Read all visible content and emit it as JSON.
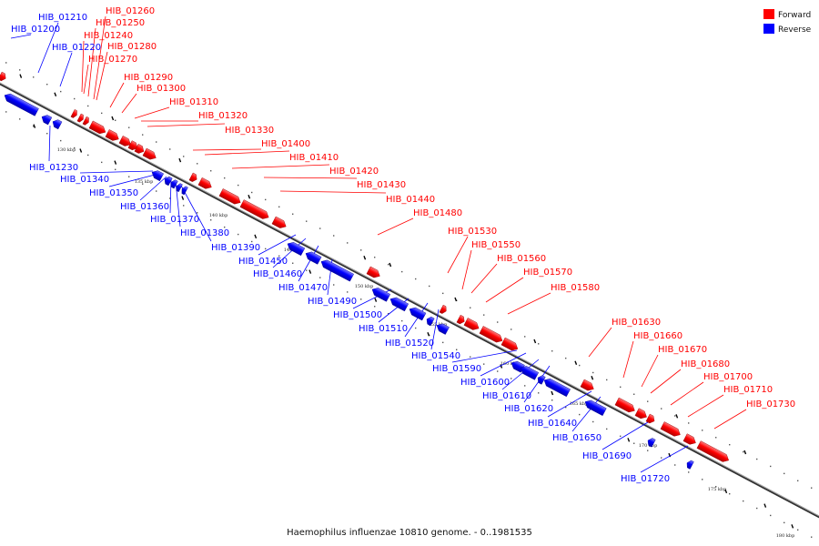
{
  "caption": "Haemophilus influenzae 10810 genome. - 0..1981535",
  "legend": [
    {
      "label": "Forward",
      "color": "#ff0000"
    },
    {
      "label": "Reverse",
      "color": "#0000ff"
    }
  ],
  "colors": {
    "forward": "#ff0000",
    "reverse": "#0000ff",
    "axis": "#808080"
  },
  "ticks": [
    "130 kbp",
    "135 kbp",
    "140 kbp",
    "145 kbp",
    "150 kbp",
    "155 kbp",
    "160 kbp",
    "165 kbp",
    "170 kbp",
    "175 kbp",
    "180 kbp"
  ],
  "genes": [
    {
      "name": "HIB_01200",
      "strand": "reverse"
    },
    {
      "name": "HIB_01210",
      "strand": "reverse"
    },
    {
      "name": "HIB_01220",
      "strand": "reverse"
    },
    {
      "name": "HIB_01230",
      "strand": "reverse"
    },
    {
      "name": "HIB_01240",
      "strand": "forward"
    },
    {
      "name": "HIB_01250",
      "strand": "forward"
    },
    {
      "name": "HIB_01260",
      "strand": "forward"
    },
    {
      "name": "HIB_01270",
      "strand": "forward"
    },
    {
      "name": "HIB_01280",
      "strand": "forward"
    },
    {
      "name": "HIB_01290",
      "strand": "forward"
    },
    {
      "name": "HIB_01300",
      "strand": "forward"
    },
    {
      "name": "HIB_01310",
      "strand": "forward"
    },
    {
      "name": "HIB_01320",
      "strand": "forward"
    },
    {
      "name": "HIB_01330",
      "strand": "forward"
    },
    {
      "name": "HIB_01340",
      "strand": "reverse"
    },
    {
      "name": "HIB_01350",
      "strand": "reverse"
    },
    {
      "name": "HIB_01360",
      "strand": "reverse"
    },
    {
      "name": "HIB_01370",
      "strand": "reverse"
    },
    {
      "name": "HIB_01380",
      "strand": "reverse"
    },
    {
      "name": "HIB_01390",
      "strand": "reverse"
    },
    {
      "name": "HIB_01400",
      "strand": "forward"
    },
    {
      "name": "HIB_01410",
      "strand": "forward"
    },
    {
      "name": "HIB_01420",
      "strand": "forward"
    },
    {
      "name": "HIB_01430",
      "strand": "forward"
    },
    {
      "name": "HIB_01440",
      "strand": "forward"
    },
    {
      "name": "HIB_01450",
      "strand": "reverse"
    },
    {
      "name": "HIB_01460",
      "strand": "reverse"
    },
    {
      "name": "HIB_01470",
      "strand": "reverse"
    },
    {
      "name": "HIB_01480",
      "strand": "forward"
    },
    {
      "name": "HIB_01490",
      "strand": "reverse"
    },
    {
      "name": "HIB_01500",
      "strand": "reverse"
    },
    {
      "name": "HIB_01510",
      "strand": "reverse"
    },
    {
      "name": "HIB_01520",
      "strand": "reverse"
    },
    {
      "name": "HIB_01530",
      "strand": "forward"
    },
    {
      "name": "HIB_01540",
      "strand": "reverse"
    },
    {
      "name": "HIB_01550",
      "strand": "forward"
    },
    {
      "name": "HIB_01560",
      "strand": "forward"
    },
    {
      "name": "HIB_01570",
      "strand": "forward"
    },
    {
      "name": "HIB_01580",
      "strand": "forward"
    },
    {
      "name": "HIB_01590",
      "strand": "reverse"
    },
    {
      "name": "HIB_01600",
      "strand": "reverse"
    },
    {
      "name": "HIB_01610",
      "strand": "reverse"
    },
    {
      "name": "HIB_01620",
      "strand": "reverse"
    },
    {
      "name": "HIB_01630",
      "strand": "forward"
    },
    {
      "name": "HIB_01640",
      "strand": "reverse"
    },
    {
      "name": "HIB_01650",
      "strand": "reverse"
    },
    {
      "name": "HIB_01660",
      "strand": "forward"
    },
    {
      "name": "HIB_01670",
      "strand": "forward"
    },
    {
      "name": "HIB_01680",
      "strand": "forward"
    },
    {
      "name": "HIB_01690",
      "strand": "reverse"
    },
    {
      "name": "HIB_01700",
      "strand": "forward"
    },
    {
      "name": "HIB_01710",
      "strand": "forward"
    },
    {
      "name": "HIB_01720",
      "strand": "reverse"
    },
    {
      "name": "HIB_01730",
      "strand": "forward"
    }
  ]
}
